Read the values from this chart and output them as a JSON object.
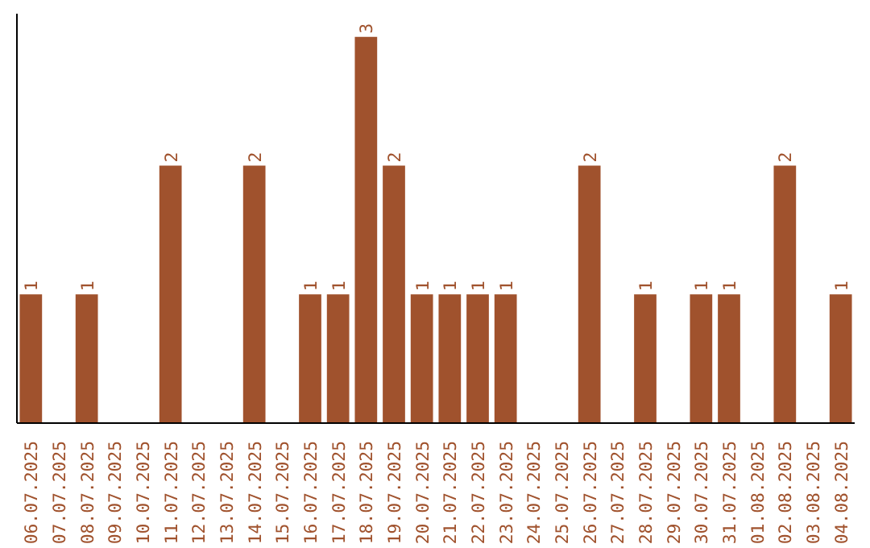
{
  "chart_data": {
    "type": "bar",
    "categories": [
      "06.07.2025",
      "07.07.2025",
      "08.07.2025",
      "09.07.2025",
      "10.07.2025",
      "11.07.2025",
      "12.07.2025",
      "13.07.2025",
      "14.07.2025",
      "15.07.2025",
      "16.07.2025",
      "17.07.2025",
      "18.07.2025",
      "19.07.2025",
      "20.07.2025",
      "21.07.2025",
      "22.07.2025",
      "23.07.2025",
      "24.07.2025",
      "25.07.2025",
      "26.07.2025",
      "27.07.2025",
      "28.07.2025",
      "29.07.2025",
      "30.07.2025",
      "31.07.2025",
      "01.08.2025",
      "02.08.2025",
      "03.08.2025",
      "04.08.2025"
    ],
    "values": [
      1,
      0,
      1,
      0,
      0,
      2,
      0,
      0,
      2,
      0,
      1,
      1,
      3,
      2,
      1,
      1,
      1,
      1,
      0,
      0,
      2,
      0,
      1,
      0,
      1,
      1,
      0,
      2,
      0,
      1
    ],
    "value_labels": [
      "1",
      null,
      "1",
      null,
      null,
      "2",
      null,
      null,
      "2",
      null,
      "1",
      "1",
      "3",
      "2",
      "1",
      "1",
      "1",
      "1",
      null,
      null,
      "2",
      null,
      "1",
      null,
      "1",
      "1",
      null,
      "2",
      null,
      "1"
    ],
    "color": "#a0522d",
    "grid": false,
    "tick_labels": "x"
  }
}
